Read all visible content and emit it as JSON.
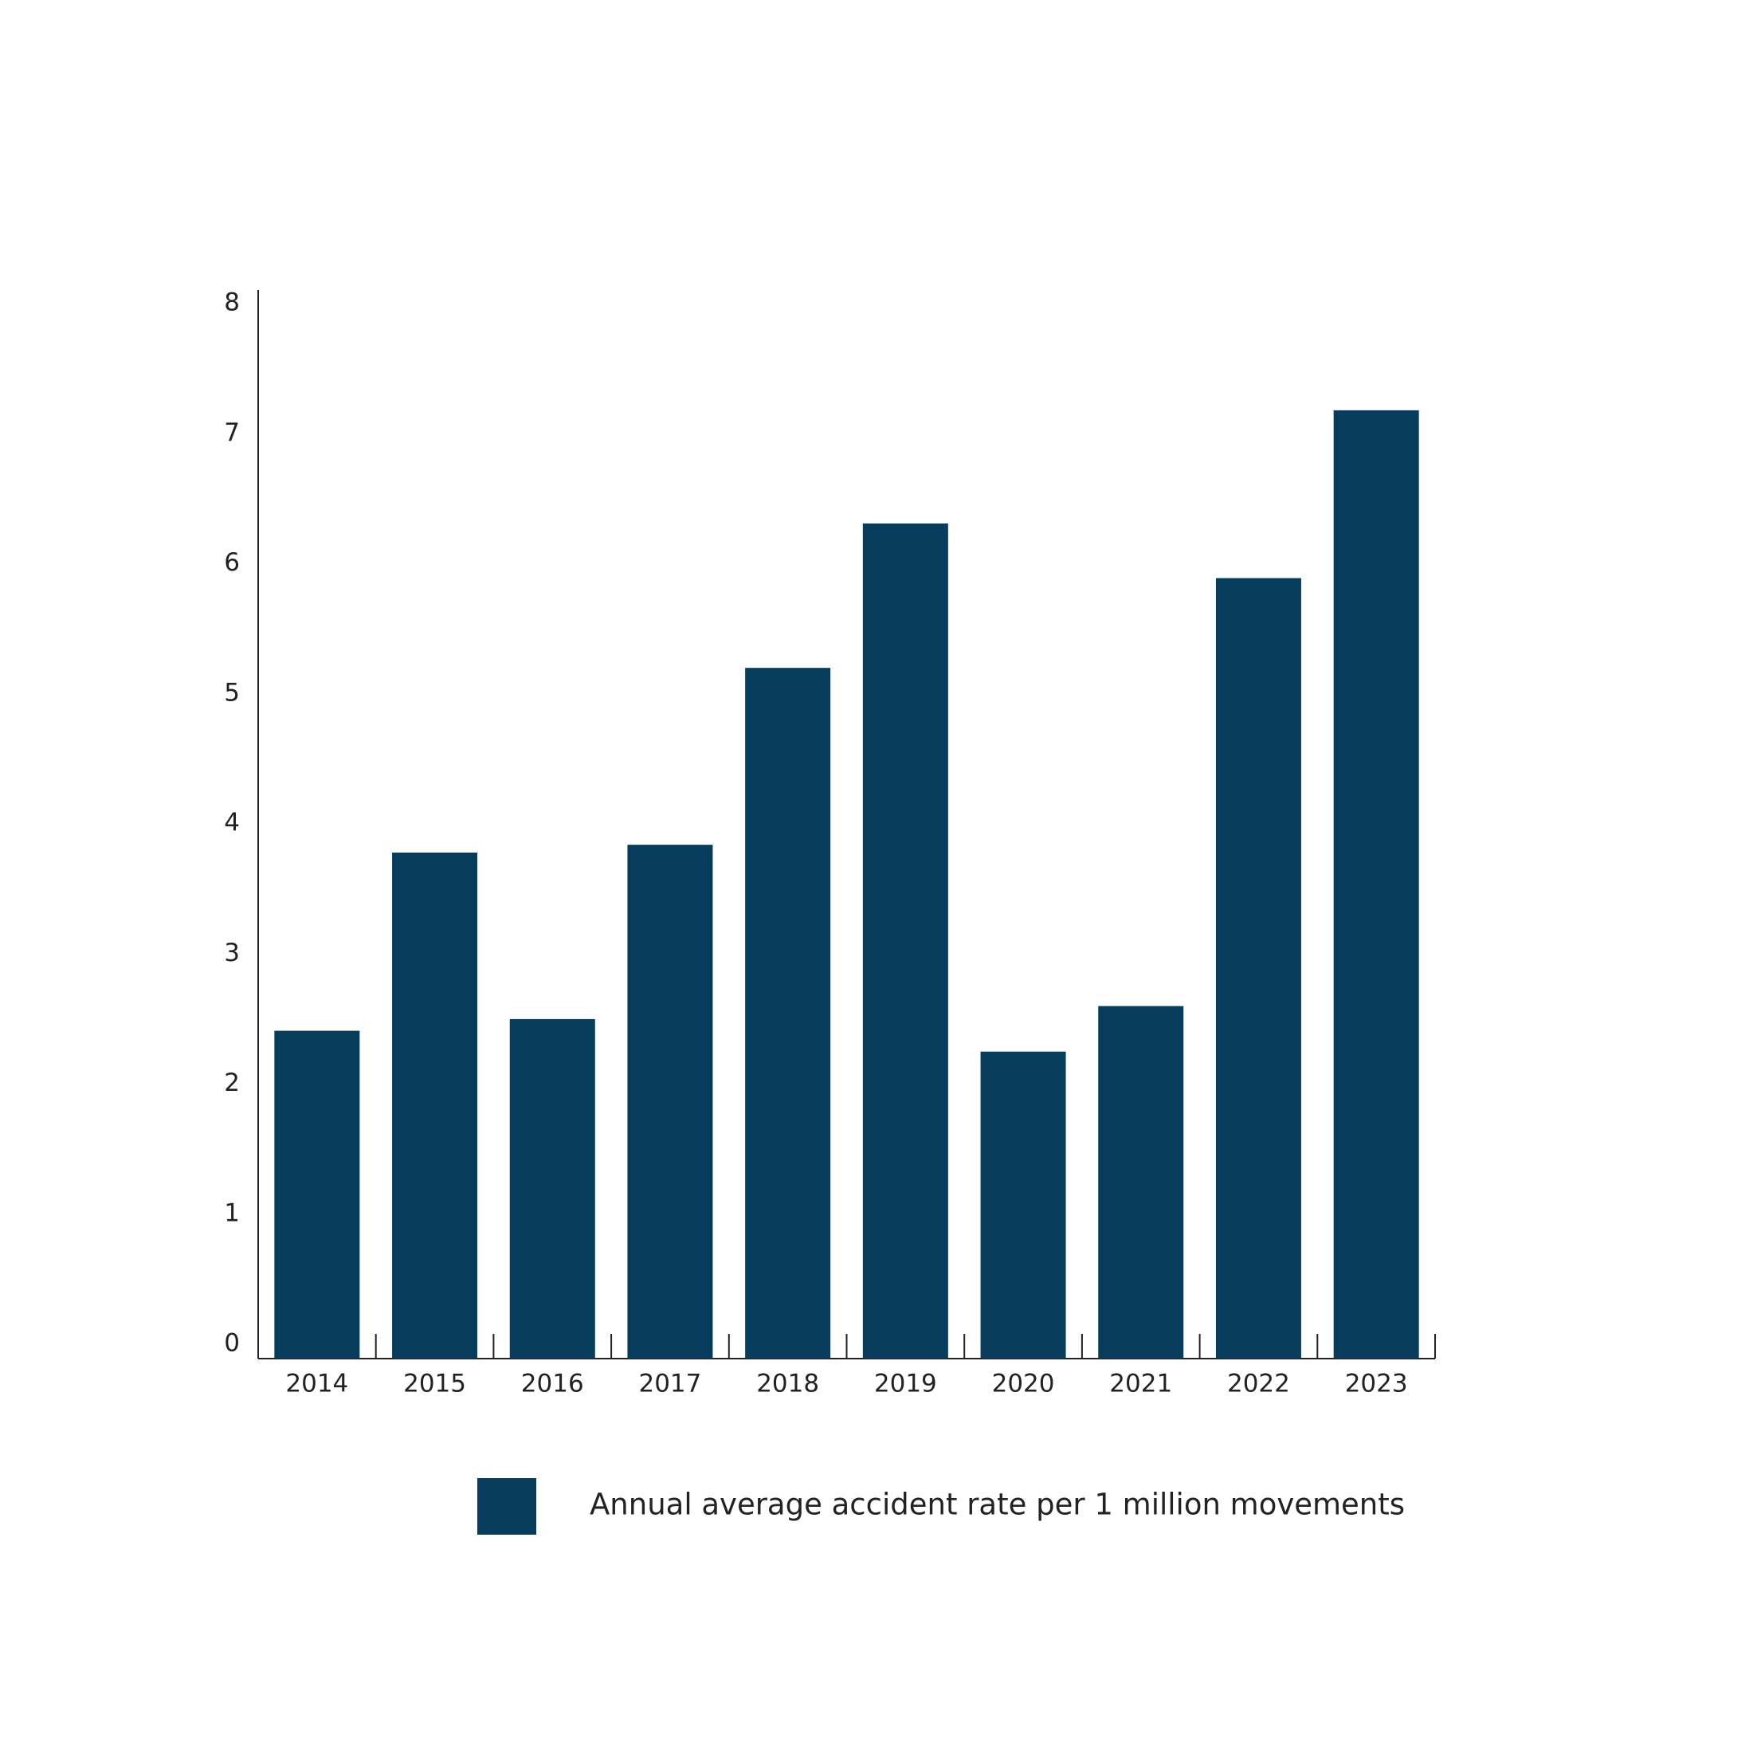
{
  "chart_data": {
    "type": "bar",
    "categories": [
      "2014",
      "2015",
      "2016",
      "2017",
      "2018",
      "2019",
      "2020",
      "2021",
      "2022",
      "2023"
    ],
    "series": [
      {
        "name": "Annual average accident rate per 1 million movements",
        "color": "#063d5c",
        "values": [
          2.52,
          3.89,
          2.61,
          3.95,
          5.31,
          6.42,
          2.36,
          2.71,
          6.0,
          7.29
        ]
      }
    ],
    "ylim": [
      0,
      8
    ],
    "yticks": [
      0,
      1,
      2,
      3,
      4,
      5,
      6,
      7,
      8
    ],
    "grid": false
  }
}
